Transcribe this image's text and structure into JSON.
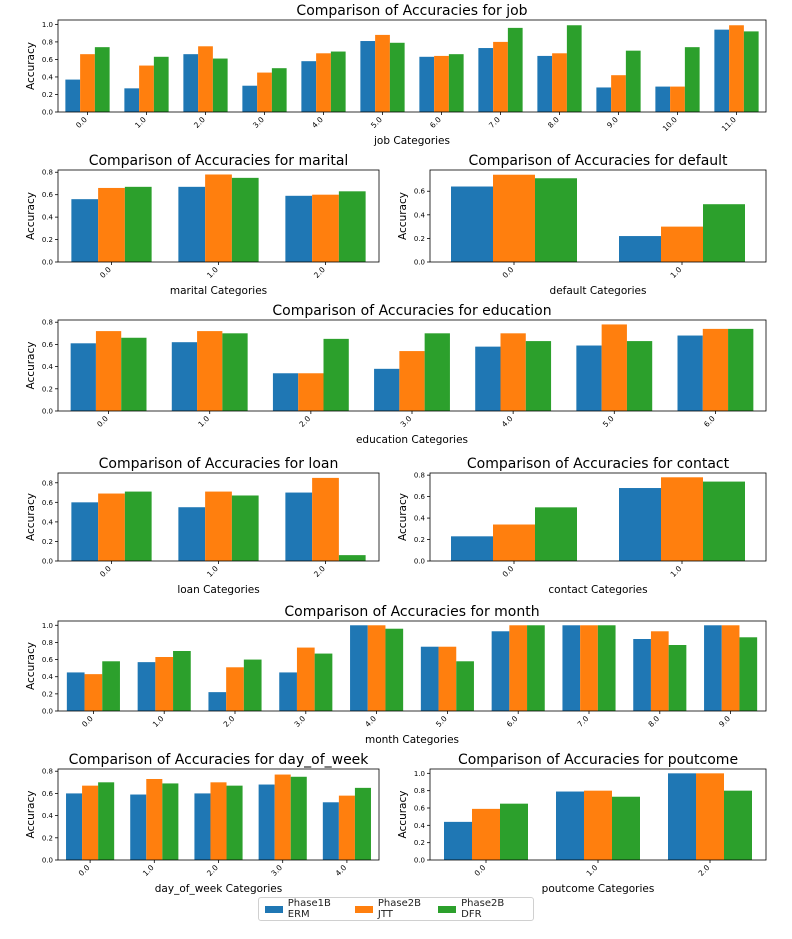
{
  "colors": {
    "erm": "#1f77b4",
    "jtt": "#ff7f0e",
    "dfr": "#2ca02c"
  },
  "legend": [
    {
      "label": "Phase1B ERM",
      "color": "#1f77b4"
    },
    {
      "label": "Phase2B JTT",
      "color": "#ff7f0e"
    },
    {
      "label": "Phase2B DFR",
      "color": "#2ca02c"
    }
  ],
  "chart_data": [
    {
      "id": "job",
      "type": "bar",
      "title": "Comparison of Accuracies for job",
      "xlabel": "job Categories",
      "ylabel": "Accuracy",
      "ylim": [
        0,
        1.05
      ],
      "yticks": [
        0.0,
        0.2,
        0.4,
        0.6,
        0.8,
        1.0
      ],
      "ytick_labels": [
        "0.0",
        "0.2",
        "0.4",
        "0.6",
        "0.8",
        "1.0"
      ],
      "categories": [
        "0.0",
        "1.0",
        "2.0",
        "3.0",
        "4.0",
        "5.0",
        "6.0",
        "7.0",
        "8.0",
        "9.0",
        "10.0",
        "11.0"
      ],
      "series": [
        {
          "name": "Phase1B ERM",
          "values": [
            0.37,
            0.27,
            0.66,
            0.3,
            0.58,
            0.81,
            0.63,
            0.73,
            0.64,
            0.28,
            0.29,
            0.94
          ]
        },
        {
          "name": "Phase2B JTT",
          "values": [
            0.66,
            0.53,
            0.75,
            0.45,
            0.67,
            0.88,
            0.64,
            0.8,
            0.67,
            0.42,
            0.29,
            0.99
          ]
        },
        {
          "name": "Phase2B DFR",
          "values": [
            0.74,
            0.63,
            0.61,
            0.5,
            0.69,
            0.79,
            0.66,
            0.96,
            0.99,
            0.7,
            0.74,
            0.92
          ]
        }
      ]
    },
    {
      "id": "marital",
      "type": "bar",
      "title": "Comparison of Accuracies for marital",
      "xlabel": "marital Categories",
      "ylabel": "Accuracy",
      "ylim": [
        0,
        0.82
      ],
      "yticks": [
        0.0,
        0.2,
        0.4,
        0.6,
        0.8
      ],
      "ytick_labels": [
        "0.0",
        "0.2",
        "0.4",
        "0.6",
        "0.8"
      ],
      "categories": [
        "0.0",
        "1.0",
        "2.0"
      ],
      "series": [
        {
          "name": "Phase1B ERM",
          "values": [
            0.56,
            0.67,
            0.59
          ]
        },
        {
          "name": "Phase2B JTT",
          "values": [
            0.66,
            0.78,
            0.6
          ]
        },
        {
          "name": "Phase2B DFR",
          "values": [
            0.67,
            0.75,
            0.63
          ]
        }
      ]
    },
    {
      "id": "default",
      "type": "bar",
      "title": "Comparison of Accuracies for default",
      "xlabel": "default Categories",
      "ylabel": "Accuracy",
      "ylim": [
        0,
        0.78
      ],
      "yticks": [
        0.0,
        0.2,
        0.4,
        0.6
      ],
      "ytick_labels": [
        "0.0",
        "0.2",
        "0.4",
        "0.6"
      ],
      "categories": [
        "0.0",
        "1.0"
      ],
      "series": [
        {
          "name": "Phase1B ERM",
          "values": [
            0.64,
            0.22
          ]
        },
        {
          "name": "Phase2B JTT",
          "values": [
            0.74,
            0.3
          ]
        },
        {
          "name": "Phase2B DFR",
          "values": [
            0.71,
            0.49
          ]
        }
      ]
    },
    {
      "id": "education",
      "type": "bar",
      "title": "Comparison of Accuracies for education",
      "xlabel": "education Categories",
      "ylabel": "Accuracy",
      "ylim": [
        0,
        0.82
      ],
      "yticks": [
        0.0,
        0.2,
        0.4,
        0.6,
        0.8
      ],
      "ytick_labels": [
        "0.0",
        "0.2",
        "0.4",
        "0.6",
        "0.8"
      ],
      "categories": [
        "0.0",
        "1.0",
        "2.0",
        "3.0",
        "4.0",
        "5.0",
        "6.0"
      ],
      "series": [
        {
          "name": "Phase1B ERM",
          "values": [
            0.61,
            0.62,
            0.34,
            0.38,
            0.58,
            0.59,
            0.68
          ]
        },
        {
          "name": "Phase2B JTT",
          "values": [
            0.72,
            0.72,
            0.34,
            0.54,
            0.7,
            0.78,
            0.74
          ]
        },
        {
          "name": "Phase2B DFR",
          "values": [
            0.66,
            0.7,
            0.65,
            0.7,
            0.63,
            0.63,
            0.74
          ]
        }
      ]
    },
    {
      "id": "loan",
      "type": "bar",
      "title": "Comparison of Accuracies for loan",
      "xlabel": "loan Categories",
      "ylabel": "Accuracy",
      "ylim": [
        0,
        0.9
      ],
      "yticks": [
        0.0,
        0.2,
        0.4,
        0.6,
        0.8
      ],
      "ytick_labels": [
        "0.0",
        "0.2",
        "0.4",
        "0.6",
        "0.8"
      ],
      "categories": [
        "0.0",
        "1.0",
        "2.0"
      ],
      "series": [
        {
          "name": "Phase1B ERM",
          "values": [
            0.6,
            0.55,
            0.7
          ]
        },
        {
          "name": "Phase2B JTT",
          "values": [
            0.69,
            0.71,
            0.85
          ]
        },
        {
          "name": "Phase2B DFR",
          "values": [
            0.71,
            0.67,
            0.06
          ]
        }
      ]
    },
    {
      "id": "contact",
      "type": "bar",
      "title": "Comparison of Accuracies for contact",
      "xlabel": "contact Categories",
      "ylabel": "Accuracy",
      "ylim": [
        0,
        0.82
      ],
      "yticks": [
        0.0,
        0.2,
        0.4,
        0.6,
        0.8
      ],
      "ytick_labels": [
        "0.0",
        "0.2",
        "0.4",
        "0.6",
        "0.8"
      ],
      "categories": [
        "0.0",
        "1.0"
      ],
      "series": [
        {
          "name": "Phase1B ERM",
          "values": [
            0.23,
            0.68
          ]
        },
        {
          "name": "Phase2B JTT",
          "values": [
            0.34,
            0.78
          ]
        },
        {
          "name": "Phase2B DFR",
          "values": [
            0.5,
            0.74
          ]
        }
      ]
    },
    {
      "id": "month",
      "type": "bar",
      "title": "Comparison of Accuracies for month",
      "xlabel": "month Categories",
      "ylabel": "Accuracy",
      "ylim": [
        0,
        1.05
      ],
      "yticks": [
        0.0,
        0.2,
        0.4,
        0.6,
        0.8,
        1.0
      ],
      "ytick_labels": [
        "0.0",
        "0.2",
        "0.4",
        "0.6",
        "0.8",
        "1.0"
      ],
      "categories": [
        "0.0",
        "1.0",
        "2.0",
        "3.0",
        "4.0",
        "5.0",
        "6.0",
        "7.0",
        "8.0",
        "9.0"
      ],
      "series": [
        {
          "name": "Phase1B ERM",
          "values": [
            0.45,
            0.57,
            0.22,
            0.45,
            1.0,
            0.75,
            0.93,
            1.0,
            0.84,
            1.0
          ]
        },
        {
          "name": "Phase2B JTT",
          "values": [
            0.43,
            0.63,
            0.51,
            0.74,
            1.0,
            0.75,
            1.0,
            1.0,
            0.93,
            1.0
          ]
        },
        {
          "name": "Phase2B DFR",
          "values": [
            0.58,
            0.7,
            0.6,
            0.67,
            0.96,
            0.58,
            1.0,
            1.0,
            0.77,
            0.86
          ]
        }
      ]
    },
    {
      "id": "day_of_week",
      "type": "bar",
      "title": "Comparison of Accuracies for day_of_week",
      "xlabel": "day_of_week Categories",
      "ylabel": "Accuracy",
      "ylim": [
        0,
        0.82
      ],
      "yticks": [
        0.0,
        0.2,
        0.4,
        0.6,
        0.8
      ],
      "ytick_labels": [
        "0.0",
        "0.2",
        "0.4",
        "0.6",
        "0.8"
      ],
      "categories": [
        "0.0",
        "1.0",
        "2.0",
        "3.0",
        "4.0"
      ],
      "series": [
        {
          "name": "Phase1B ERM",
          "values": [
            0.6,
            0.59,
            0.6,
            0.68,
            0.52
          ]
        },
        {
          "name": "Phase2B JTT",
          "values": [
            0.67,
            0.73,
            0.7,
            0.77,
            0.58
          ]
        },
        {
          "name": "Phase2B DFR",
          "values": [
            0.7,
            0.69,
            0.67,
            0.75,
            0.65
          ]
        }
      ]
    },
    {
      "id": "poutcome",
      "type": "bar",
      "title": "Comparison of Accuracies for poutcome",
      "xlabel": "poutcome Categories",
      "ylabel": "Accuracy",
      "ylim": [
        0,
        1.05
      ],
      "yticks": [
        0.0,
        0.2,
        0.4,
        0.6,
        0.8,
        1.0
      ],
      "ytick_labels": [
        "0.0",
        "0.2",
        "0.4",
        "0.6",
        "0.8",
        "1.0"
      ],
      "categories": [
        "0.0",
        "1.0",
        "2.0"
      ],
      "series": [
        {
          "name": "Phase1B ERM",
          "values": [
            0.44,
            0.79,
            1.0
          ]
        },
        {
          "name": "Phase2B JTT",
          "values": [
            0.59,
            0.8,
            1.0
          ]
        },
        {
          "name": "Phase2B DFR",
          "values": [
            0.65,
            0.73,
            0.8
          ]
        }
      ]
    }
  ]
}
